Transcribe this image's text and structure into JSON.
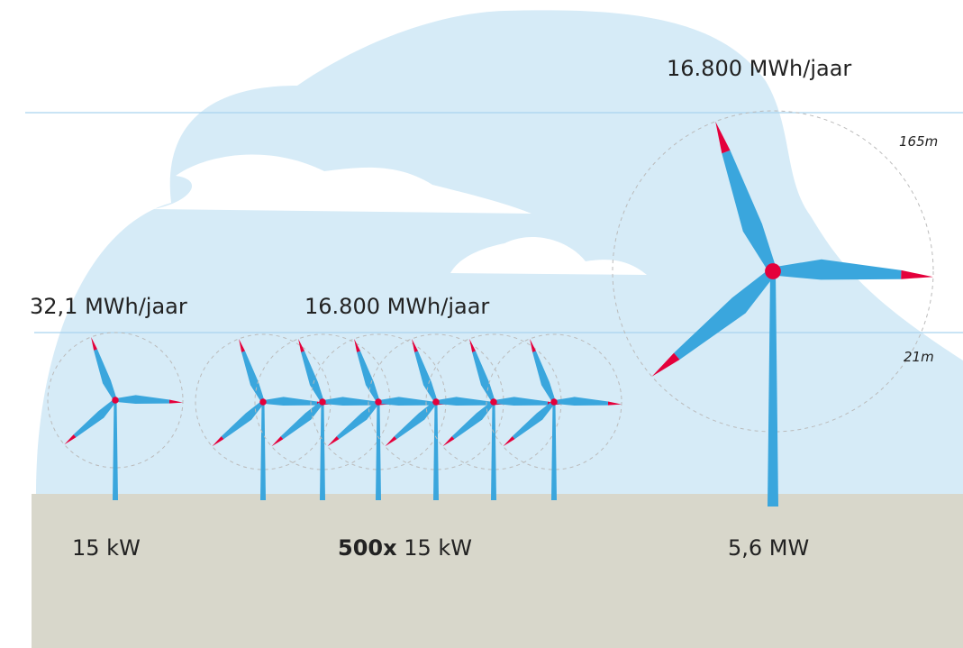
{
  "top_yield": "16.800 MWh/jaar",
  "height_top": "165m",
  "height_bottom": "21m",
  "small_yield": "32,1 MWh/jaar",
  "group_yield": "16.800 MWh/jaar",
  "small_power": "15 kW",
  "group_power": {
    "count": "500x",
    "unit": "15 kW"
  },
  "large_power": "5,6 MW"
}
